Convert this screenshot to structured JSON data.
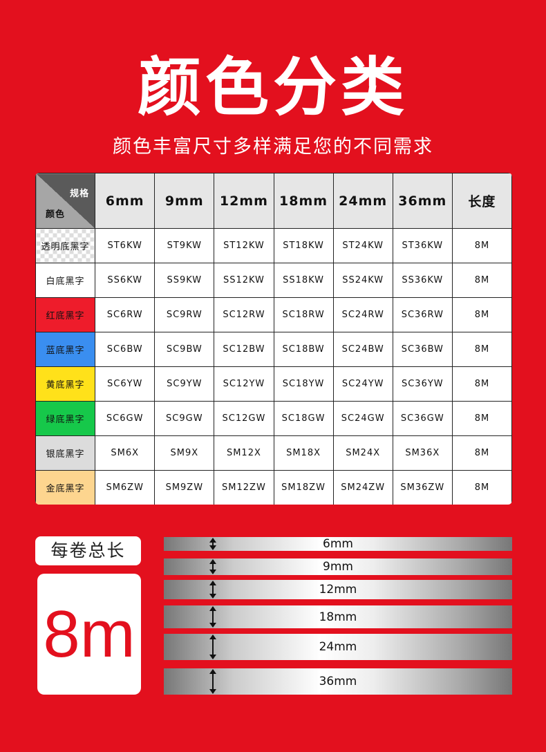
{
  "title": "颜色分类",
  "subtitle": "颜色丰富尺寸多样满足您的不同需求",
  "table": {
    "corner_top": "规格",
    "corner_bottom": "颜色",
    "headers": [
      "6mm",
      "9mm",
      "12mm",
      "18mm",
      "24mm",
      "36mm",
      "长度"
    ],
    "rows": [
      {
        "color": "透明底黑字",
        "bg": "checker",
        "cells": [
          "ST6KW",
          "ST9KW",
          "ST12KW",
          "ST18KW",
          "ST24KW",
          "ST36KW",
          "8M"
        ]
      },
      {
        "color": "白底黑字",
        "bg": "#ffffff",
        "cells": [
          "SS6KW",
          "SS9KW",
          "SS12KW",
          "SS18KW",
          "SS24KW",
          "SS36KW",
          "8M"
        ]
      },
      {
        "color": "红底黑字",
        "bg": "#ee1c2b",
        "cells": [
          "SC6RW",
          "SC9RW",
          "SC12RW",
          "SC18RW",
          "SC24RW",
          "SC36RW",
          "8M"
        ]
      },
      {
        "color": "蓝底黑字",
        "bg": "#3a8ef0",
        "cells": [
          "SC6BW",
          "SC9BW",
          "SC12BW",
          "SC18BW",
          "SC24BW",
          "SC36BW",
          "8M"
        ]
      },
      {
        "color": "黄底黑字",
        "bg": "#ffe11a",
        "cells": [
          "SC6YW",
          "SC9YW",
          "SC12YW",
          "SC18YW",
          "SC24YW",
          "SC36YW",
          "8M"
        ]
      },
      {
        "color": "绿底黑字",
        "bg": "#16c84a",
        "cells": [
          "SC6GW",
          "SC9GW",
          "SC12GW",
          "SC18GW",
          "SC24GW",
          "SC36GW",
          "8M"
        ]
      },
      {
        "color": "银底黑字",
        "bg": "#dcdcdc",
        "cells": [
          "SM6X",
          "SM9X",
          "SM12X",
          "SM18X",
          "SM24X",
          "SM36X",
          "8M"
        ]
      },
      {
        "color": "金底黑字",
        "bg": "#fdd58f",
        "cells": [
          "SM6ZW",
          "SM9ZW",
          "SM12ZW",
          "SM18ZW",
          "SM24ZW",
          "SM36ZW",
          "8M"
        ]
      }
    ]
  },
  "length_label": "每卷总长",
  "length_value": "8m",
  "tapes": [
    "6mm",
    "9mm",
    "12mm",
    "18mm",
    "24mm",
    "36mm"
  ]
}
